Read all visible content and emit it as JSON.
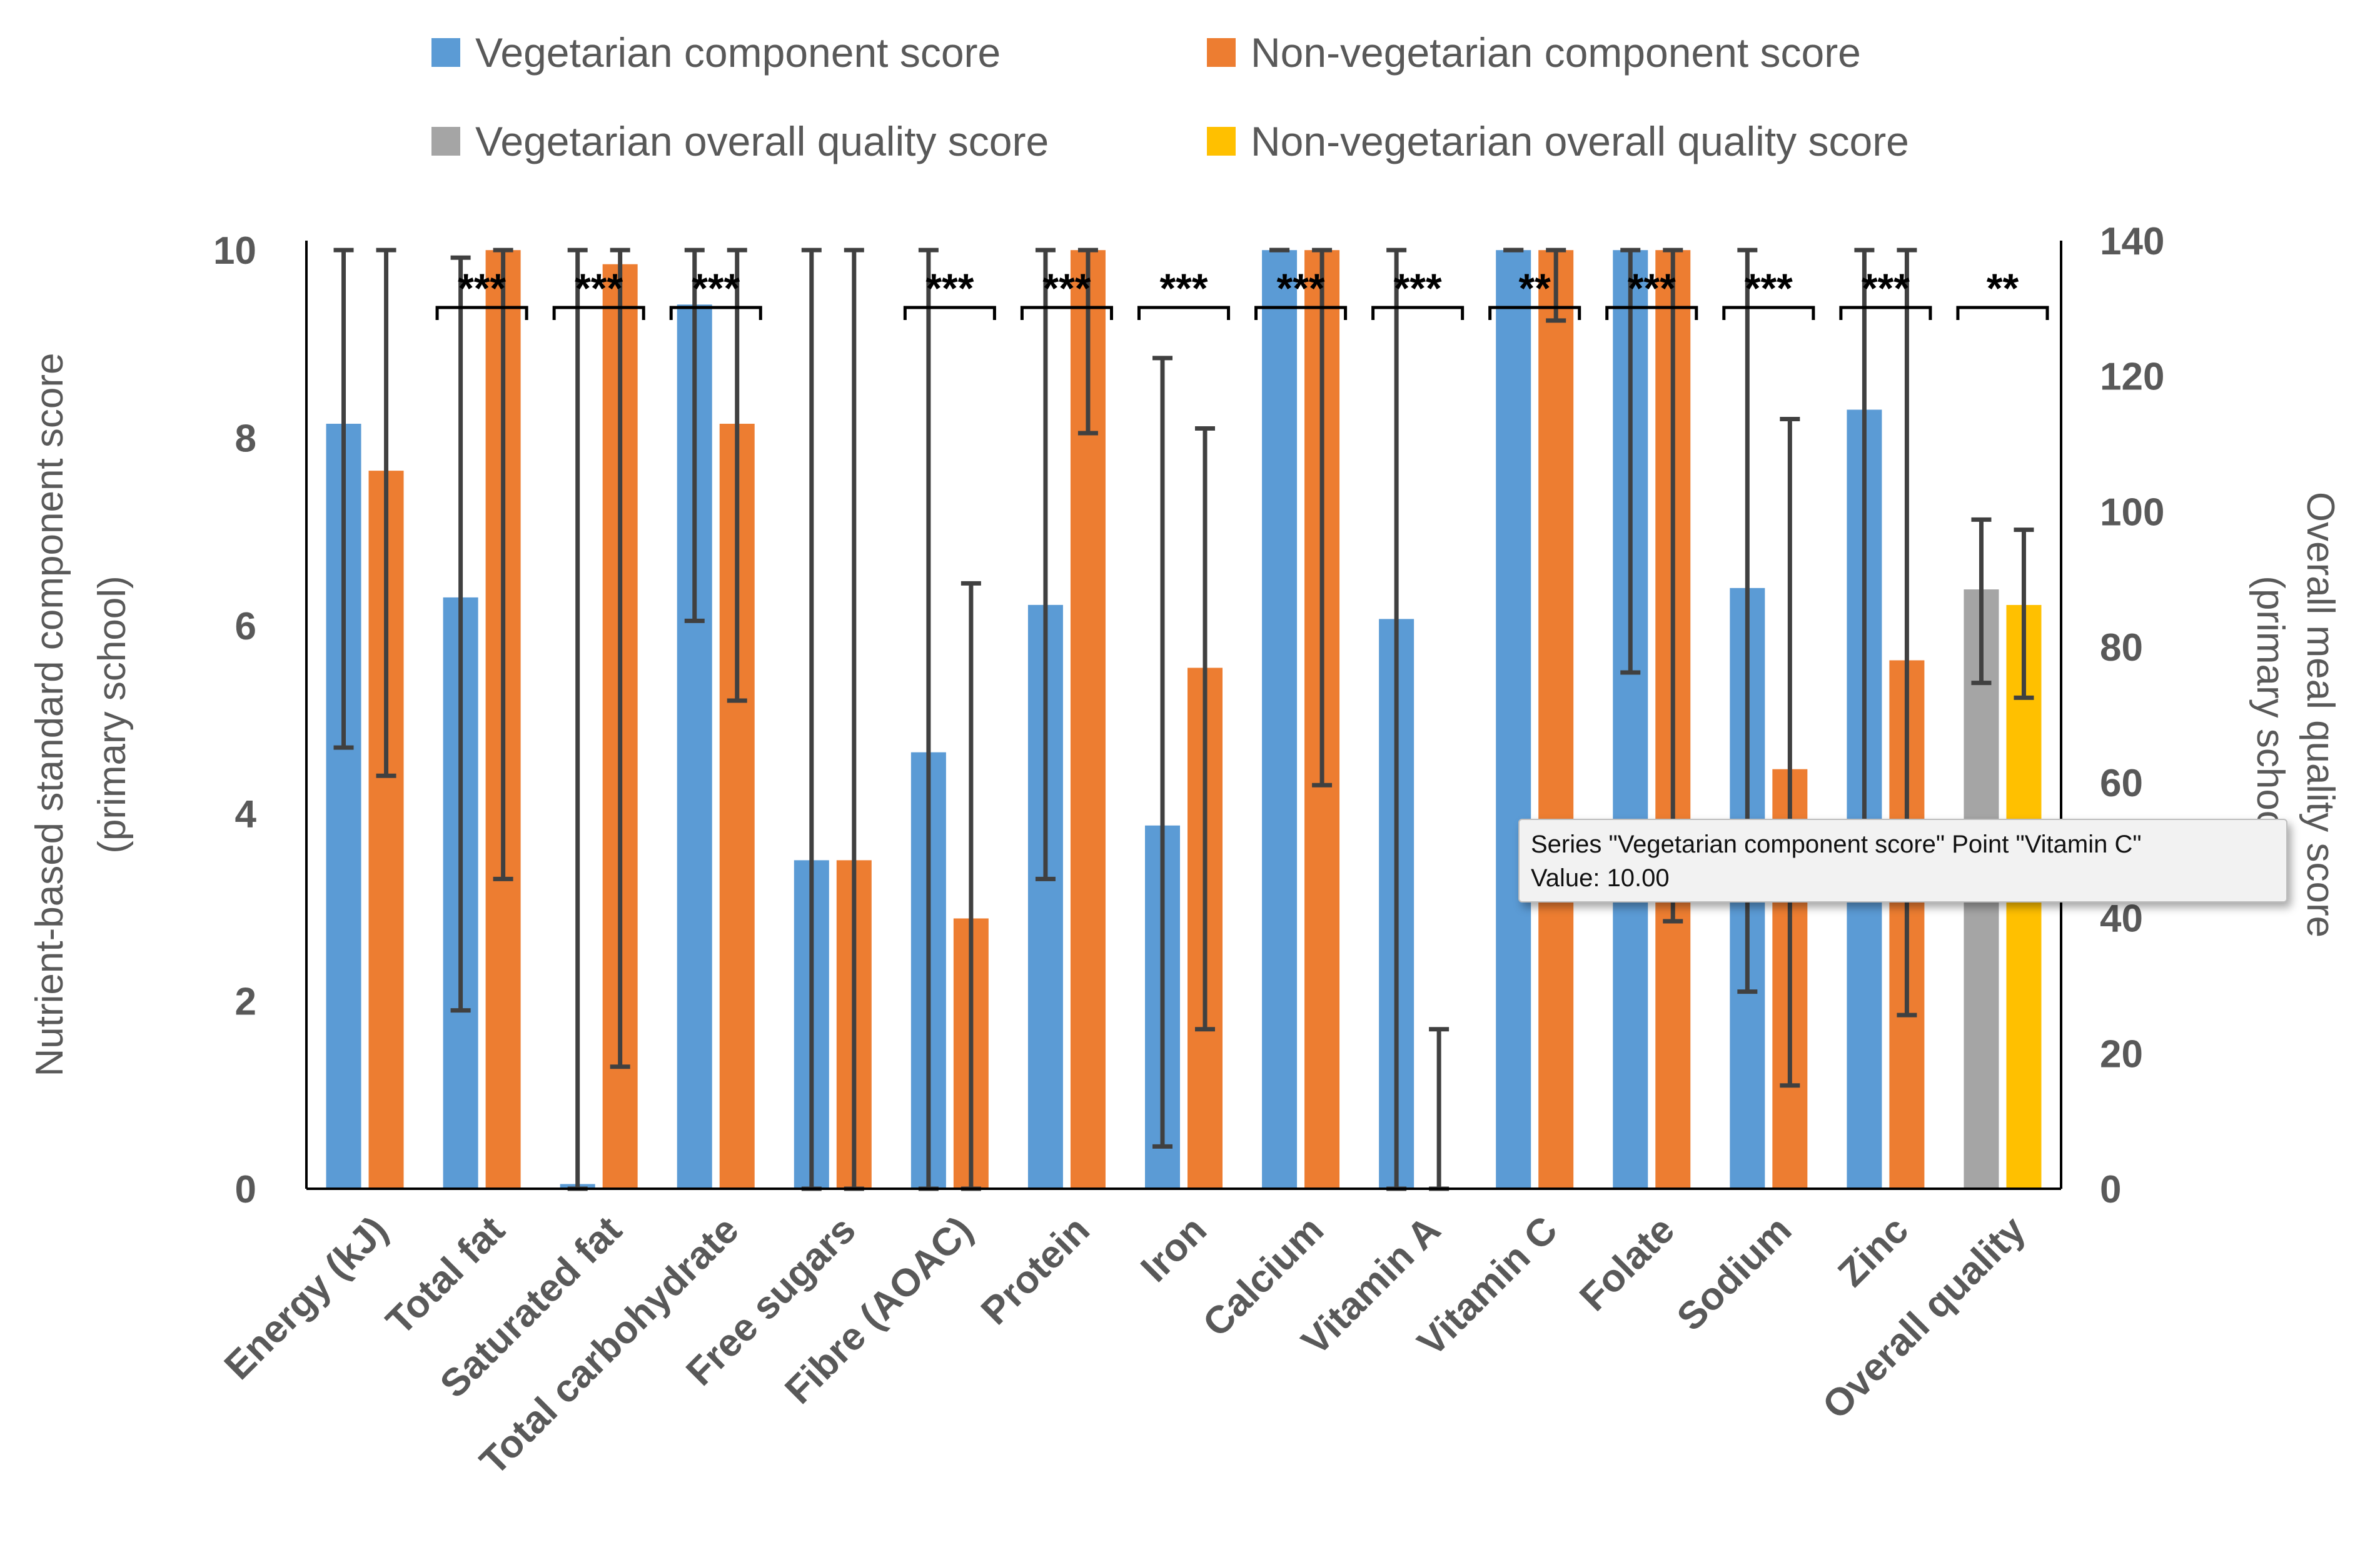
{
  "legend": {
    "veg_component": "Vegetarian component score",
    "nonveg_component": "Non-vegetarian component score",
    "veg_overall": "Vegetarian overall quality score",
    "nonveg_overall": "Non-vegetarian overall quality score"
  },
  "tooltip": {
    "line1": "Series \"Vegetarian component score\" Point \"Vitamin C\"",
    "line2": "Value: 10.00"
  },
  "colors": {
    "vegetarian": "#5B9BD5",
    "non_vegetarian": "#ED7D31",
    "veg_overall": "#A5A5A5",
    "nonveg_overall": "#FFC000",
    "error_bar": "#404040",
    "axis": "#000000",
    "text": "#595959"
  },
  "chart_data": {
    "type": "bar",
    "ylabel": "Nutrient-based standard component score (primary school)",
    "y2label": "Overall meal quality score (primary school)",
    "ylim": [
      0,
      11
    ],
    "y2lim": [
      0,
      140
    ],
    "yticks": [
      0,
      2,
      4,
      6,
      8,
      10
    ],
    "y2ticks": [
      0,
      20,
      40,
      60,
      80,
      100,
      120,
      140
    ],
    "grid": false,
    "legend_position": "top",
    "categories": [
      "Energy (kJ)",
      "Total fat",
      "Saturated fat",
      "Total carbohydrate",
      "Free sugars",
      "Fibre (AOAC)",
      "Protein",
      "Iron",
      "Calcium",
      "Vitamin A",
      "Vitamin C",
      "Folate",
      "Sodium",
      "Zinc",
      "Overall quality"
    ],
    "significance": [
      "",
      "***",
      "***",
      "***",
      "",
      "***",
      "***",
      "***",
      "***",
      "***",
      "**",
      "***",
      "***",
      "***",
      "**"
    ],
    "series": [
      {
        "name": "Vegetarian component score",
        "axis": "left",
        "values": [
          8.15,
          6.3,
          0.05,
          9.42,
          3.5,
          4.65,
          6.22,
          3.87,
          10.0,
          6.07,
          10.0,
          10.0,
          6.4,
          8.3,
          null
        ],
        "err_low": [
          4.7,
          1.9,
          0.0,
          6.05,
          0.0,
          0.0,
          3.3,
          0.45,
          10.0,
          0.0,
          10.0,
          5.5,
          2.1,
          3.3,
          null
        ],
        "err_high": [
          10.0,
          9.92,
          10.0,
          10.0,
          10.0,
          10.0,
          10.0,
          8.85,
          10.0,
          10.0,
          10.0,
          10.0,
          10.0,
          10.0,
          null
        ]
      },
      {
        "name": "Non-vegetarian component score",
        "axis": "left",
        "values": [
          7.65,
          10.0,
          9.85,
          8.15,
          3.5,
          2.88,
          10.0,
          5.55,
          10.0,
          0.0,
          10.0,
          10.0,
          4.47,
          5.63,
          null
        ],
        "err_low": [
          4.4,
          3.3,
          1.3,
          5.2,
          0.0,
          0.0,
          8.05,
          1.7,
          4.3,
          0.0,
          9.25,
          2.85,
          1.1,
          1.85,
          null
        ],
        "err_high": [
          10.0,
          10.0,
          10.0,
          10.0,
          10.0,
          6.45,
          10.0,
          8.1,
          10.0,
          1.7,
          10.0,
          10.0,
          8.2,
          10.0,
          null
        ]
      },
      {
        "name": "Vegetarian overall quality score",
        "axis": "right",
        "values": [
          null,
          null,
          null,
          null,
          null,
          null,
          null,
          null,
          null,
          null,
          null,
          null,
          null,
          null,
          88.5
        ],
        "err_low": [
          null,
          null,
          null,
          null,
          null,
          null,
          null,
          null,
          null,
          null,
          null,
          null,
          null,
          null,
          74.7
        ],
        "err_high": [
          null,
          null,
          null,
          null,
          null,
          null,
          null,
          null,
          null,
          null,
          null,
          null,
          null,
          null,
          98.8
        ]
      },
      {
        "name": "Non-vegetarian overall quality score",
        "axis": "right",
        "values": [
          null,
          null,
          null,
          null,
          null,
          null,
          null,
          null,
          null,
          null,
          null,
          null,
          null,
          null,
          86.2
        ],
        "err_low": [
          null,
          null,
          null,
          null,
          null,
          null,
          null,
          null,
          null,
          null,
          null,
          null,
          null,
          null,
          72.5
        ],
        "err_high": [
          null,
          null,
          null,
          null,
          null,
          null,
          null,
          null,
          null,
          null,
          null,
          null,
          null,
          null,
          97.3
        ]
      }
    ]
  }
}
